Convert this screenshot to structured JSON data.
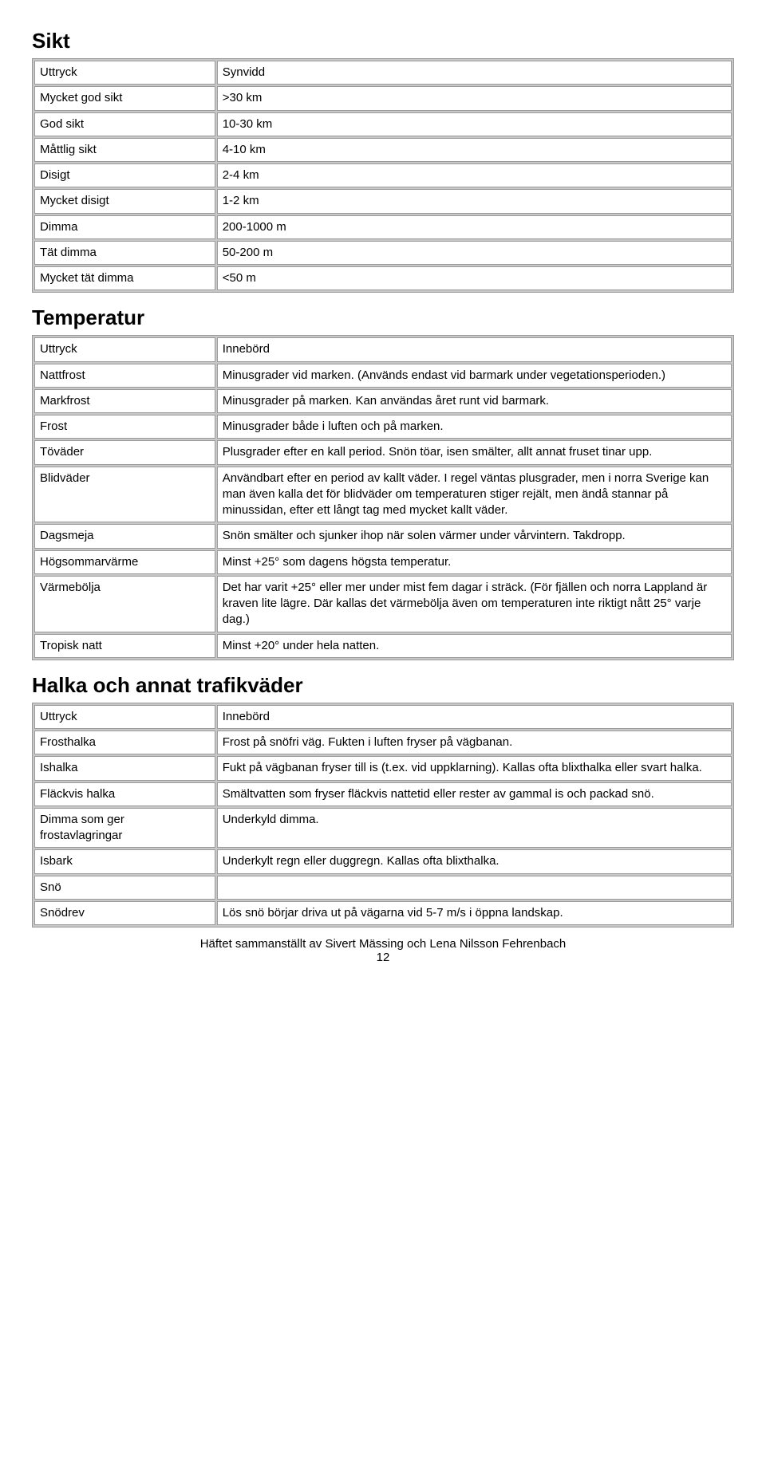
{
  "sikt": {
    "heading": "Sikt",
    "rows": [
      {
        "term": "Uttryck",
        "desc": "Synvidd"
      },
      {
        "term": "Mycket god sikt",
        "desc": ">30 km"
      },
      {
        "term": "God sikt",
        "desc": "10-30 km"
      },
      {
        "term": "Måttlig sikt",
        "desc": "4-10 km"
      },
      {
        "term": "Disigt",
        "desc": "2-4 km"
      },
      {
        "term": "Mycket disigt",
        "desc": "1-2 km"
      },
      {
        "term": "Dimma",
        "desc": "200-1000 m"
      },
      {
        "term": "Tät dimma",
        "desc": "50-200 m"
      },
      {
        "term": "Mycket tät dimma",
        "desc": "<50 m"
      }
    ]
  },
  "temperatur": {
    "heading": "Temperatur",
    "rows": [
      {
        "term": "Uttryck",
        "desc": "Innebörd"
      },
      {
        "term": "Nattfrost",
        "desc": "Minusgrader vid marken.  (Används endast vid barmark under vegetationsperioden.)"
      },
      {
        "term": "Markfrost",
        "desc": "Minusgrader på marken.   Kan användas året runt vid barmark."
      },
      {
        "term": "Frost",
        "desc": "Minusgrader både i luften och på marken."
      },
      {
        "term": "Töväder",
        "desc": "Plusgrader efter en kall period.   Snön töar, isen smälter, allt annat fruset tinar upp."
      },
      {
        "term": "Blidväder",
        "desc": "Användbart efter en period av kallt väder.  I regel väntas plusgrader, men i norra Sverige kan man även kalla det för blidväder om temperaturen stiger rejält, men ändå stannar på minussidan, efter ett långt tag med mycket kallt väder."
      },
      {
        "term": "Dagsmeja",
        "desc": "Snön smälter och sjunker ihop när solen värmer under vårvintern.  Takdropp."
      },
      {
        "term": "Högsommarvärme",
        "desc": "Minst +25° som dagens högsta temperatur."
      },
      {
        "term": "Värmebölja",
        "desc": "Det har varit +25° eller mer under mist fem dagar i sträck.  (För fjällen och norra Lappland är kraven lite lägre.  Där kallas det värmebölja även om temperaturen inte riktigt nått 25° varje dag.)"
      },
      {
        "term": "Tropisk natt",
        "desc": "Minst +20° under hela natten."
      }
    ]
  },
  "halka": {
    "heading": "Halka och annat trafikväder",
    "rows": [
      {
        "term": "Uttryck",
        "desc": "Innebörd"
      },
      {
        "term": "Frosthalka",
        "desc": "Frost på snöfri väg.  Fukten i luften fryser på vägbanan."
      },
      {
        "term": "Ishalka",
        "desc": "Fukt på vägbanan fryser till is (t.ex. vid uppklarning).  Kallas ofta blixthalka eller svart halka."
      },
      {
        "term": "Fläckvis halka",
        "desc": "Smältvatten som fryser fläckvis nattetid eller rester av gammal is och packad snö."
      },
      {
        "term": "Dimma som ger frostavlagringar",
        "desc": "Underkyld dimma."
      },
      {
        "term": "Isbark",
        "desc": "Underkylt regn eller duggregn.  Kallas ofta blixthalka."
      },
      {
        "term": "Snö",
        "desc": ""
      },
      {
        "term": "Snödrev",
        "desc": "Lös snö börjar driva ut på vägarna vid 5-7 m/s i öppna landskap."
      }
    ]
  },
  "footer": {
    "line1": "Häftet sammanställt av Sivert Mässing och Lena Nilsson Fehrenbach",
    "line2": "12"
  }
}
